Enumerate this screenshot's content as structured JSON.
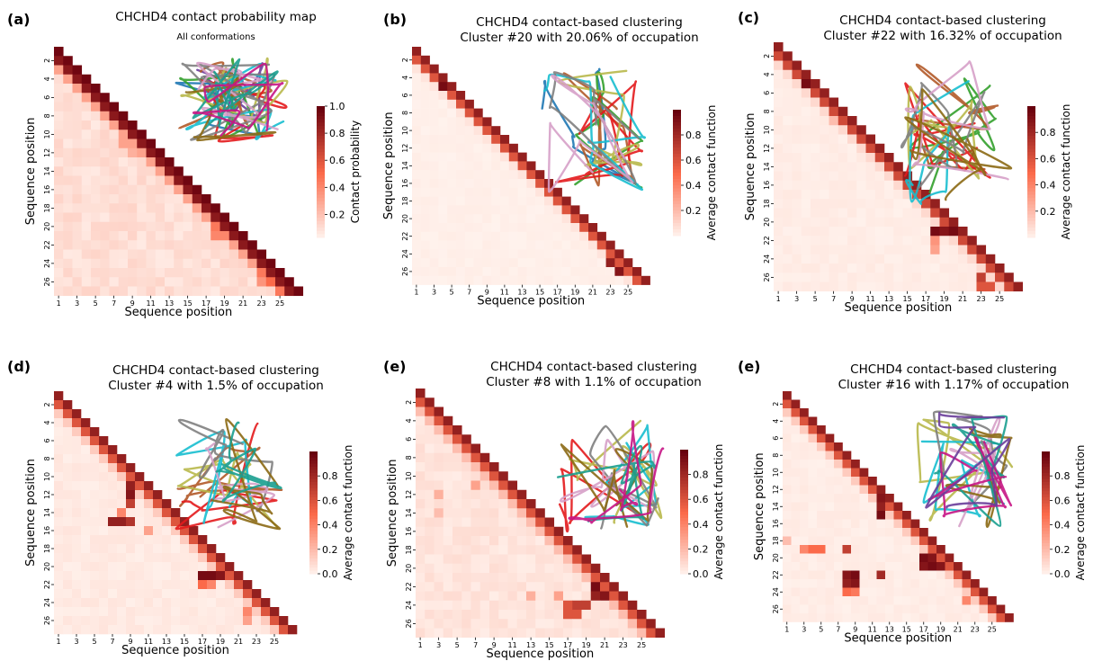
{
  "colors": {
    "cmap_low": "#fff5f0",
    "cmap_mid": "#fb6a4a",
    "cmap_high": "#67000d",
    "bg": "#ffffff"
  },
  "chart_data": [
    {
      "type": "heatmap",
      "panel": "(a)",
      "title": "CHCHD4 contact probability map",
      "subtitle": "All conformations",
      "xlabel": "Sequence position",
      "ylabel": "Sequence position",
      "x_ticks": [
        "1",
        "3",
        "5",
        "7",
        "9",
        "11",
        "13",
        "15",
        "17",
        "19",
        "21",
        "23",
        "25"
      ],
      "y_ticks": [
        "2",
        "4",
        "6",
        "8",
        "10",
        "12",
        "14",
        "16",
        "18",
        "20",
        "22",
        "24",
        "26"
      ],
      "colorbar": {
        "label": "Contact probability",
        "ticks": [
          "0.2",
          "0.4",
          "0.6",
          "0.8",
          "1.0"
        ],
        "range": [
          0.03,
          1.0
        ]
      },
      "n": 27,
      "mask": "upper",
      "diagonal": 0.97,
      "offdiag1": 0.88,
      "offdiag2": 0.3,
      "background": 0.08,
      "hotspots": [
        [
          19,
          17,
          0.45
        ],
        [
          20,
          17,
          0.4
        ],
        [
          20,
          18,
          0.4
        ],
        [
          24,
          22,
          0.45
        ],
        [
          25,
          22,
          0.35
        ],
        [
          25,
          23,
          0.5
        ],
        [
          26,
          24,
          0.45
        ],
        [
          10,
          7,
          0.3
        ],
        [
          11,
          8,
          0.25
        ]
      ],
      "inset_image": "protein-ensemble-structure"
    },
    {
      "type": "heatmap",
      "panel": "(b)",
      "title": "CHCHD4 contact-based clustering",
      "subtitle": "Cluster #20 with 20.06% of occupation",
      "xlabel": "Sequence position",
      "ylabel": "Sequence position",
      "x_ticks": [
        "1",
        "3",
        "5",
        "7",
        "9",
        "11",
        "13",
        "15",
        "17",
        "19",
        "21",
        "23",
        "25"
      ],
      "y_ticks": [
        "2",
        "4",
        "6",
        "8",
        "10",
        "12",
        "14",
        "16",
        "18",
        "20",
        "22",
        "24",
        "26"
      ],
      "colorbar": {
        "label": "Average contact function",
        "ticks": [
          "0.2",
          "0.4",
          "0.6",
          "0.8"
        ],
        "range": [
          0.0,
          1.0
        ]
      },
      "n": 27,
      "mask": "upper",
      "diagonal": 0.85,
      "offdiag1": 0.6,
      "offdiag2": 0.06,
      "background": 0.02,
      "hotspots": [
        [
          4,
          3,
          0.95
        ],
        [
          24,
          22,
          0.85
        ],
        [
          25,
          23,
          0.9
        ]
      ],
      "inset_image": "protein-cluster-structure"
    },
    {
      "type": "heatmap",
      "panel": "(c)",
      "title": "CHCHD4 contact-based clustering",
      "subtitle": "Cluster #22 with 16.32% of occupation",
      "xlabel": "Sequence position",
      "ylabel": "Sequence position",
      "x_ticks": [
        "1",
        "3",
        "5",
        "7",
        "9",
        "11",
        "13",
        "15",
        "17",
        "19",
        "21",
        "23",
        "25"
      ],
      "y_ticks": [
        "2",
        "4",
        "6",
        "8",
        "10",
        "12",
        "14",
        "16",
        "18",
        "20",
        "22",
        "24",
        "26"
      ],
      "colorbar": {
        "label": "Average contact function",
        "ticks": [
          "0.2",
          "0.4",
          "0.6",
          "0.8"
        ],
        "range": [
          0.0,
          1.0
        ]
      },
      "n": 27,
      "mask": "upper",
      "diagonal": 0.85,
      "offdiag1": 0.65,
      "offdiag2": 0.1,
      "background": 0.03,
      "hotspots": [
        [
          4,
          3,
          0.95
        ],
        [
          20,
          17,
          0.95
        ],
        [
          20,
          18,
          0.9
        ],
        [
          20,
          19,
          0.95
        ],
        [
          21,
          17,
          0.35
        ],
        [
          22,
          17,
          0.3
        ],
        [
          25,
          22,
          0.7
        ],
        [
          26,
          22,
          0.6
        ],
        [
          26,
          23,
          0.6
        ],
        [
          8,
          6,
          0.2
        ]
      ],
      "inset_image": "protein-cluster-structure"
    },
    {
      "type": "heatmap",
      "panel": "(d)",
      "title": "CHCHD4 contact-based clustering",
      "subtitle": "Cluster #4 with 1.5% of occupation",
      "xlabel": "Sequence position",
      "ylabel": "Sequence position",
      "x_ticks": [
        "1",
        "3",
        "5",
        "7",
        "9",
        "11",
        "13",
        "15",
        "17",
        "19",
        "21",
        "23",
        "25"
      ],
      "y_ticks": [
        "2",
        "4",
        "6",
        "8",
        "10",
        "12",
        "14",
        "16",
        "18",
        "20",
        "22",
        "24",
        "26"
      ],
      "colorbar": {
        "label": "Average contact function",
        "ticks": [
          "0.0",
          "0.2",
          "0.4",
          "0.6",
          "0.8"
        ],
        "range": [
          0.0,
          1.0
        ]
      },
      "n": 27,
      "mask": "upper",
      "diagonal": 0.85,
      "offdiag1": 0.6,
      "offdiag2": 0.15,
      "background": 0.04,
      "hotspots": [
        [
          10,
          8,
          0.85
        ],
        [
          11,
          8,
          0.9
        ],
        [
          12,
          8,
          0.7
        ],
        [
          13,
          7,
          0.4
        ],
        [
          14,
          6,
          0.85
        ],
        [
          14,
          7,
          0.85
        ],
        [
          14,
          8,
          0.75
        ],
        [
          15,
          10,
          0.3
        ],
        [
          20,
          16,
          0.95
        ],
        [
          20,
          17,
          0.95
        ],
        [
          20,
          18,
          0.9
        ],
        [
          21,
          16,
          0.5
        ],
        [
          21,
          17,
          0.4
        ],
        [
          24,
          21,
          0.4
        ],
        [
          25,
          21,
          0.3
        ]
      ],
      "inset_image": "protein-cluster-structure"
    },
    {
      "type": "heatmap",
      "panel": "(e)",
      "title": "CHCHD4 contact-based clustering",
      "subtitle": "Cluster #8 with 1.1% of occupation",
      "xlabel": "Sequence position",
      "ylabel": "Sequence position",
      "x_ticks": [
        "1",
        "3",
        "5",
        "7",
        "9",
        "11",
        "13",
        "15",
        "17",
        "19",
        "21",
        "23",
        "25"
      ],
      "y_ticks": [
        "2",
        "4",
        "6",
        "8",
        "10",
        "12",
        "14",
        "16",
        "18",
        "20",
        "22",
        "24",
        "26"
      ],
      "colorbar": {
        "label": "Average contact function",
        "ticks": [
          "0.0",
          "0.2",
          "0.4",
          "0.6",
          "0.8"
        ],
        "range": [
          0.0,
          1.0
        ]
      },
      "n": 27,
      "mask": "upper",
      "diagonal": 0.85,
      "offdiag1": 0.6,
      "offdiag2": 0.2,
      "background": 0.06,
      "hotspots": [
        [
          21,
          19,
          0.95
        ],
        [
          22,
          19,
          0.85
        ],
        [
          22,
          20,
          0.9
        ],
        [
          23,
          16,
          0.6
        ],
        [
          23,
          17,
          0.7
        ],
        [
          23,
          18,
          0.7
        ],
        [
          24,
          16,
          0.6
        ],
        [
          24,
          17,
          0.6
        ],
        [
          22,
          15,
          0.3
        ],
        [
          10,
          6,
          0.3
        ],
        [
          11,
          2,
          0.25
        ],
        [
          13,
          2,
          0.2
        ],
        [
          22,
          12,
          0.25
        ]
      ],
      "inset_image": "protein-cluster-structure"
    },
    {
      "type": "heatmap",
      "panel": "(e)",
      "title": "CHCHD4 contact-based clustering",
      "subtitle": "Cluster #16 with 1.17% of occupation",
      "xlabel": "Sequence position",
      "ylabel": "Sequence position",
      "x_ticks": [
        "1",
        "3",
        "5",
        "7",
        "9",
        "11",
        "13",
        "15",
        "17",
        "19",
        "21",
        "23",
        "25"
      ],
      "y_ticks": [
        "2",
        "4",
        "6",
        "8",
        "10",
        "12",
        "14",
        "16",
        "18",
        "20",
        "22",
        "24",
        "26"
      ],
      "colorbar": {
        "label": "Average contact function",
        "ticks": [
          "0.0",
          "0.2",
          "0.4",
          "0.6",
          "0.8"
        ],
        "range": [
          0.0,
          1.0
        ]
      },
      "n": 27,
      "mask": "upper",
      "diagonal": 0.85,
      "offdiag1": 0.6,
      "offdiag2": 0.15,
      "background": 0.03,
      "hotspots": [
        [
          12,
          11,
          0.9
        ],
        [
          13,
          11,
          0.85
        ],
        [
          14,
          11,
          0.95
        ],
        [
          19,
          16,
          0.95
        ],
        [
          19,
          17,
          0.9
        ],
        [
          20,
          16,
          0.9
        ],
        [
          20,
          17,
          0.95
        ],
        [
          20,
          18,
          0.9
        ],
        [
          21,
          7,
          0.9
        ],
        [
          21,
          8,
          0.95
        ],
        [
          21,
          11,
          0.8
        ],
        [
          22,
          7,
          0.85
        ],
        [
          22,
          8,
          0.9
        ],
        [
          23,
          7,
          0.5
        ],
        [
          23,
          8,
          0.45
        ],
        [
          18,
          2,
          0.4
        ],
        [
          18,
          3,
          0.5
        ],
        [
          18,
          4,
          0.5
        ],
        [
          18,
          7,
          0.7
        ],
        [
          17,
          0,
          0.2
        ],
        [
          24,
          21,
          0.4
        ]
      ],
      "inset_image": "protein-cluster-structure"
    }
  ]
}
